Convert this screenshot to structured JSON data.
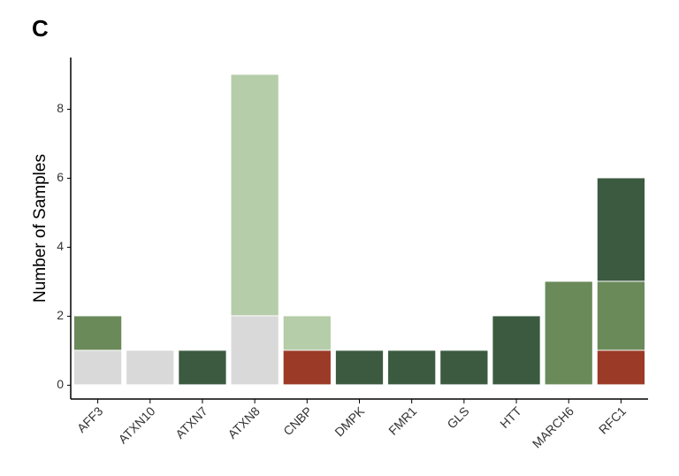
{
  "chart_data": {
    "type": "stacked_bar",
    "panel_label": "C",
    "y_label": "Number of Samples",
    "categories": [
      "AFF3",
      "ATXN10",
      "ATXN7",
      "ATXN8",
      "CNBP",
      "DMPK",
      "FMR1",
      "GLS",
      "HTT",
      "MARCH6",
      "RFC1"
    ],
    "series": [
      {
        "color": "#d9d9d9",
        "values": [
          1,
          1,
          0,
          2,
          0,
          0,
          0,
          0,
          0,
          0,
          0
        ]
      },
      {
        "color": "#9b3a27",
        "values": [
          0,
          0,
          0,
          0,
          1,
          0,
          0,
          0,
          0,
          0,
          1
        ]
      },
      {
        "color": "#6b8a5a",
        "values": [
          1,
          0,
          0,
          0,
          0,
          0,
          0,
          0,
          0,
          3,
          2
        ]
      },
      {
        "color": "#3b5a40",
        "values": [
          0,
          0,
          1,
          0,
          0,
          1,
          1,
          1,
          2,
          0,
          3
        ]
      },
      {
        "color": "#b5cda8",
        "values": [
          0,
          0,
          0,
          7,
          1,
          0,
          0,
          0,
          0,
          0,
          0
        ]
      }
    ],
    "ylim": [
      -0.4,
      9.5
    ],
    "yticks": [
      0,
      2,
      4,
      6,
      8
    ]
  }
}
